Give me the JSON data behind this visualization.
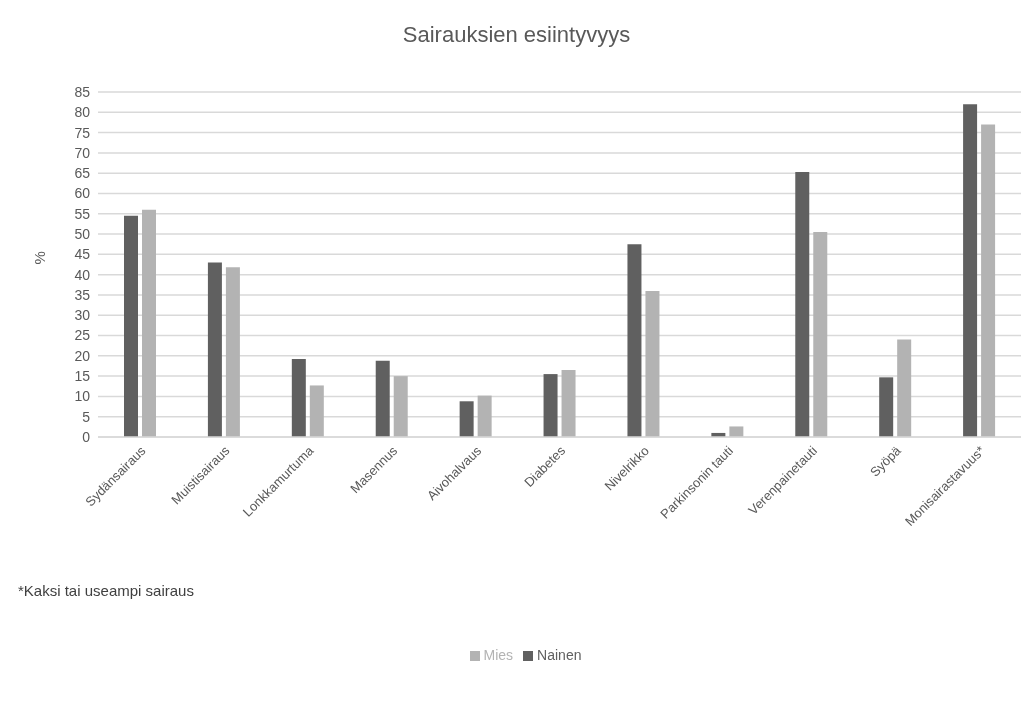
{
  "chart_data": {
    "type": "bar",
    "title": "Sairauksien esiintyvyys",
    "ylabel": "%",
    "categories": [
      "Sydänsairaus",
      "Muistisairaus",
      "Lonkkamurtuma",
      "Masennus",
      "Aivohalvaus",
      "Diabetes",
      "Nivelrikko",
      "Parkinsonin tauti",
      "Verenpainetauti",
      "Syöpä",
      "Monisairastavuus*"
    ],
    "series": [
      {
        "name": "Nainen",
        "color": "#606060",
        "values": [
          54.5,
          43,
          19.2,
          18.8,
          8.8,
          15.5,
          47.5,
          1,
          65.3,
          14.7,
          82
        ]
      },
      {
        "name": "Mies",
        "color": "#b3b3b3",
        "values": [
          56,
          41.8,
          12.7,
          15,
          10.2,
          16.5,
          36,
          2.6,
          50.5,
          24,
          77
        ]
      }
    ],
    "ylim": [
      0,
      85
    ],
    "yticks": [
      0,
      5,
      10,
      15,
      20,
      25,
      30,
      35,
      40,
      45,
      50,
      55,
      60,
      65,
      70,
      75,
      80,
      85
    ],
    "grid": "y",
    "legend": "bottom",
    "annotations": [
      "*Kaksi tai useampi sairaus"
    ]
  }
}
